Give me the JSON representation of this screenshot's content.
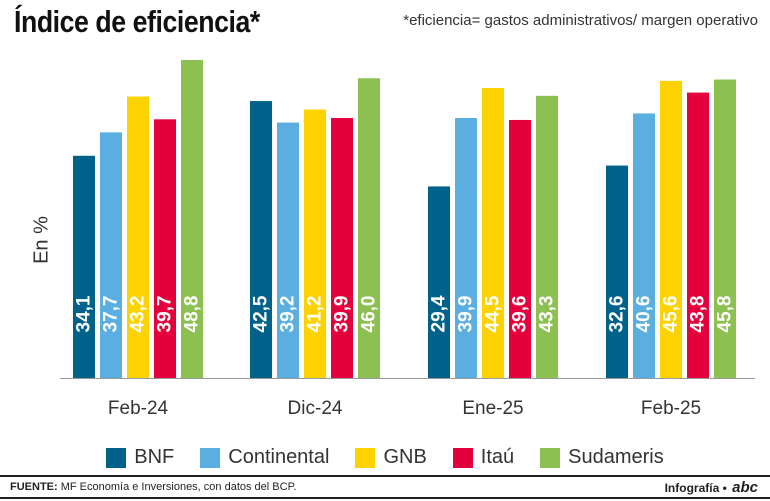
{
  "title": "Índice de eficiencia*",
  "note": "*eficiencia= gastos administrativos/ margen operativo",
  "footer": {
    "source_label": "FUENTE:",
    "source_text": "MF Economía e Inversiones, con datos del BCP.",
    "credit": "Infografía •",
    "logo": "abc"
  },
  "chart_data": {
    "type": "bar",
    "title": "Índice de eficiencia*",
    "ylabel": "En %",
    "xlabel": "",
    "categories": [
      "Feb-24",
      "Dic-24",
      "Ene-25",
      "Feb-25"
    ],
    "ylim": [
      0,
      50
    ],
    "grid": false,
    "legend_position": "bottom",
    "series": [
      {
        "name": "BNF",
        "color": "#00628b",
        "values": [
          34.1,
          42.5,
          29.4,
          32.6
        ],
        "labels": [
          "34,1",
          "42,5",
          "29,4",
          "32,6"
        ]
      },
      {
        "name": "Continental",
        "color": "#5aaee0",
        "values": [
          37.7,
          39.2,
          39.9,
          40.6
        ],
        "labels": [
          "37,7",
          "39,2",
          "39,9",
          "40,6"
        ]
      },
      {
        "name": "GNB",
        "color": "#fcd200",
        "values": [
          43.2,
          41.2,
          44.5,
          45.6
        ],
        "labels": [
          "43,2",
          "41,2",
          "44,5",
          "45,6"
        ]
      },
      {
        "name": "Itaú",
        "color": "#e4003c",
        "values": [
          39.7,
          39.9,
          39.6,
          43.8
        ],
        "labels": [
          "39,7",
          "39,9",
          "39,6",
          "43,8"
        ]
      },
      {
        "name": "Sudameris",
        "color": "#8cc152",
        "values": [
          48.8,
          46.0,
          43.3,
          45.8
        ],
        "labels": [
          "48,8",
          "46,0",
          "43,3",
          "45,8"
        ]
      }
    ]
  }
}
